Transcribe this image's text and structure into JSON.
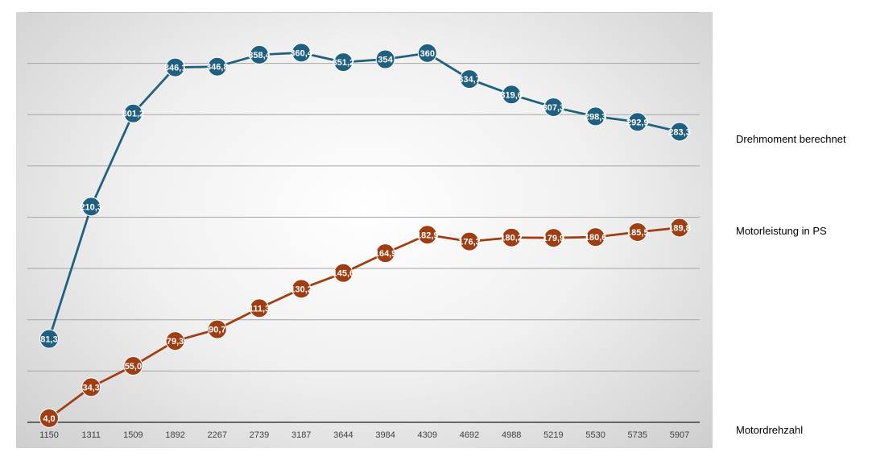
{
  "chart_data": {
    "type": "line",
    "categories": [
      "1150",
      "1311",
      "1509",
      "1892",
      "2267",
      "2739",
      "3187",
      "3644",
      "3984",
      "4309",
      "4692",
      "4988",
      "5219",
      "5530",
      "5735",
      "5907"
    ],
    "series": [
      {
        "name": "Drehmoment berechnet",
        "color": "#1f5f80",
        "values": [
          81.3,
          210.3,
          301.2,
          346.1,
          346.8,
          358.4,
          360.4,
          351.2,
          354,
          360,
          334.7,
          319.6,
          307.3,
          298.3,
          292.9,
          283.3
        ],
        "labels": [
          "81,3",
          "210,3",
          "301,2",
          "346,1",
          "346,8",
          "358,4",
          "360,4",
          "351,2",
          "354",
          "360",
          "334,7",
          "319,6",
          "307,3",
          "298,3",
          "292,9",
          "283,3"
        ]
      },
      {
        "name": "Motorleistung in PS",
        "color": "#9e3e12",
        "values": [
          4.0,
          34.3,
          55.0,
          79.3,
          90.7,
          111.3,
          130.2,
          145.6,
          164.9,
          182.9,
          176.3,
          180.2,
          179.9,
          180.6,
          185.5,
          189.8
        ],
        "labels": [
          "4,0",
          "34,3",
          "55,0",
          "79,3",
          "90,7",
          "111,3",
          "130,2",
          "145,6",
          "164,9",
          "182,9",
          "176,3",
          "180,2",
          "179,9",
          "180,6",
          "185,5",
          "189,8"
        ]
      }
    ],
    "xlabel": "Motordrehzahl",
    "ylabel": "",
    "ylim": [
      0,
      400
    ],
    "grid": true,
    "legend": "right"
  }
}
